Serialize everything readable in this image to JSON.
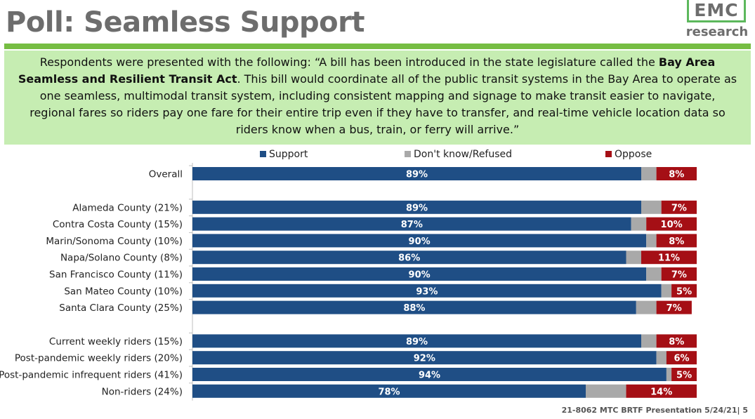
{
  "title": "Poll: Seamless Support",
  "logo": {
    "top": "EMC",
    "bottom": "research"
  },
  "description": {
    "part1": "Respondents were presented with the following: “A bill has been introduced in the state legislature called the ",
    "bold": "Bay Area Seamless and Resilient Transit Act",
    "part2": ". This bill would coordinate all of the public transit systems in the Bay Area to operate as one seamless, multimodal transit system, including consistent mapping and signage to make transit easier to navigate, regional fares so riders pay one fare for their entire trip even if they have to transfer, and real-time vehicle location data so riders know when a bus, train, or ferry will arrive.”"
  },
  "footer": "21-8062 MTC BRTF Presentation 5/24/21| 5",
  "colors": {
    "support": "#1f4e85",
    "dontknow": "#a9a9a9",
    "oppose": "#a50f15",
    "title": "#6d6d6d",
    "accent": "#76bd43",
    "panel": "#c6edb2"
  },
  "chart_data": {
    "type": "bar",
    "orientation": "horizontal",
    "stacked": true,
    "normalized_to": 100,
    "legend": [
      "Support",
      "Don't know/Refused",
      "Oppose"
    ],
    "legend_position": "top",
    "categories": [
      "Overall",
      "Alameda County (21%)",
      "Contra Costa County (15%)",
      "Marin/Sonoma County (10%)",
      "Napa/Solano County (8%)",
      "San Francisco County (11%)",
      "San Mateo County (10%)",
      "Santa Clara County (25%)",
      "Current weekly riders (15%)",
      "Post-pandemic weekly riders (20%)",
      "Post-pandemic infrequent riders (41%)",
      "Non-riders (24%)"
    ],
    "groups": [
      [
        0
      ],
      [
        1,
        2,
        3,
        4,
        5,
        6,
        7
      ],
      [
        8,
        9,
        10,
        11
      ]
    ],
    "series": [
      {
        "name": "Support",
        "values": [
          89,
          89,
          87,
          90,
          86,
          90,
          93,
          88,
          89,
          92,
          94,
          78
        ],
        "labels": [
          "89%",
          "89%",
          "87%",
          "90%",
          "86%",
          "90%",
          "93%",
          "88%",
          "89%",
          "92%",
          "94%",
          "78%"
        ]
      },
      {
        "name": "Don't know/Refused",
        "values": [
          3,
          4,
          3,
          2,
          3,
          3,
          2,
          4,
          3,
          2,
          1,
          8
        ],
        "labels": [
          "",
          "",
          "",
          "",
          "",
          "",
          "",
          "",
          "",
          "",
          "",
          ""
        ]
      },
      {
        "name": "Oppose",
        "values": [
          8,
          7,
          10,
          8,
          11,
          7,
          5,
          7,
          8,
          6,
          5,
          14
        ],
        "labels": [
          "8%",
          "7%",
          "10%",
          "8%",
          "11%",
          "7%",
          "5%",
          "7%",
          "8%",
          "6%",
          "5%",
          "14%"
        ]
      }
    ],
    "xlim": [
      0,
      100
    ]
  }
}
